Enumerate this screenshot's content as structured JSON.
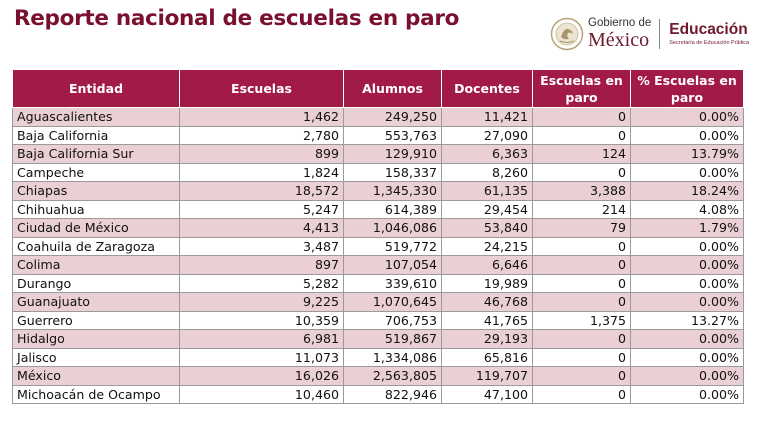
{
  "title": "Reporte nacional de escuelas en paro",
  "logo": {
    "gobierno_de": "Gobierno de",
    "mexico": "México",
    "educacion": "Educación",
    "secretaria": "Secretaría de Educación Pública",
    "seal_icon": "mexico-seal-icon"
  },
  "table": {
    "headers": [
      "Entidad",
      "Escuelas",
      "Alumnos",
      "Docentes",
      "Escuelas en paro",
      "% Escuelas en paro"
    ],
    "rows": [
      [
        "Aguascalientes",
        "1,462",
        "249,250",
        "11,421",
        "0",
        "0.00%"
      ],
      [
        "Baja California",
        "2,780",
        "553,763",
        "27,090",
        "0",
        "0.00%"
      ],
      [
        "Baja California Sur",
        "899",
        "129,910",
        "6,363",
        "124",
        "13.79%"
      ],
      [
        "Campeche",
        "1,824",
        "158,337",
        "8,260",
        "0",
        "0.00%"
      ],
      [
        "Chiapas",
        "18,572",
        "1,345,330",
        "61,135",
        "3,388",
        "18.24%"
      ],
      [
        "Chihuahua",
        "5,247",
        "614,389",
        "29,454",
        "214",
        "4.08%"
      ],
      [
        "Ciudad de México",
        "4,413",
        "1,046,086",
        "53,840",
        "79",
        "1.79%"
      ],
      [
        "Coahuila de Zaragoza",
        "3,487",
        "519,772",
        "24,215",
        "0",
        "0.00%"
      ],
      [
        "Colima",
        "897",
        "107,054",
        "6,646",
        "0",
        "0.00%"
      ],
      [
        "Durango",
        "5,282",
        "339,610",
        "19,989",
        "0",
        "0.00%"
      ],
      [
        "Guanajuato",
        "9,225",
        "1,070,645",
        "46,768",
        "0",
        "0.00%"
      ],
      [
        "Guerrero",
        "10,359",
        "706,753",
        "41,765",
        "1,375",
        "13.27%"
      ],
      [
        "Hidalgo",
        "6,981",
        "519,867",
        "29,193",
        "0",
        "0.00%"
      ],
      [
        "Jalisco",
        "11,073",
        "1,334,086",
        "65,816",
        "0",
        "0.00%"
      ],
      [
        "México",
        "16,026",
        "2,563,805",
        "119,707",
        "0",
        "0.00%"
      ],
      [
        "Michoacán de Ocampo",
        "10,460",
        "822,946",
        "47,100",
        "0",
        "0.00%"
      ]
    ]
  },
  "colors": {
    "title": "#7a1030",
    "header_bg": "#a21a46",
    "row_alt": "#ead0d4",
    "brand": "#6e1a2e"
  }
}
